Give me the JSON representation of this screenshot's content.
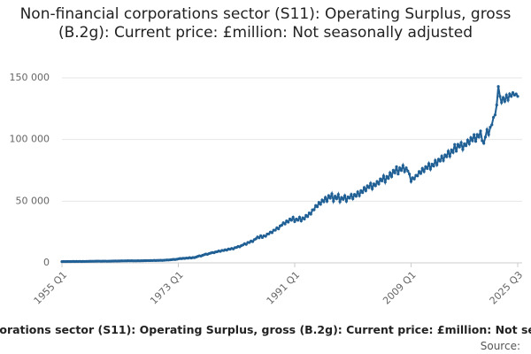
{
  "chart_data": {
    "type": "line",
    "title": "Non-financial corporations sector (S11): Operating Surplus, gross (B.2g): Current price: £million: Not seasonally adjusted",
    "source": "Source:",
    "color": "#206095",
    "grid": true,
    "ylim": [
      0,
      150000
    ],
    "yticks": [
      0,
      {
        "value": 50000,
        "label": "50 000"
      },
      {
        "value": 100000,
        "label": "100 000"
      },
      {
        "value": 150000,
        "label": "150 000"
      }
    ],
    "categories": [
      "1955 Q1",
      null,
      null,
      null,
      null,
      null,
      null,
      null,
      null,
      null,
      null,
      null,
      null,
      null,
      null,
      null,
      null,
      null,
      null,
      null,
      null,
      null,
      null,
      null,
      null,
      null,
      null,
      null,
      null,
      null,
      null,
      null,
      null,
      null,
      null,
      null,
      null,
      null,
      null,
      null,
      null,
      null,
      null,
      null,
      null,
      null,
      null,
      null,
      null,
      null,
      null,
      null,
      null,
      null,
      null,
      null,
      null,
      null,
      null,
      null,
      null,
      null,
      null,
      null,
      null,
      null,
      null,
      null,
      null,
      null,
      null,
      null,
      "1973 Q1",
      null,
      null,
      null,
      null,
      null,
      null,
      null,
      null,
      null,
      null,
      null,
      null,
      null,
      null,
      null,
      null,
      null,
      null,
      null,
      null,
      null,
      null,
      null,
      null,
      null,
      null,
      null,
      null,
      null,
      null,
      null,
      null,
      null,
      null,
      null,
      null,
      null,
      null,
      null,
      null,
      null,
      null,
      null,
      null,
      null,
      null,
      null,
      null,
      null,
      null,
      null,
      null,
      null,
      null,
      null,
      null,
      null,
      null,
      null,
      null,
      null,
      null,
      null,
      null,
      null,
      null,
      null,
      null,
      null,
      null,
      null,
      "1991 Q1",
      null,
      null,
      null,
      null,
      null,
      null,
      null,
      null,
      null,
      null,
      null,
      null,
      null,
      null,
      null,
      null,
      null,
      null,
      null,
      null,
      null,
      null,
      null,
      null,
      null,
      null,
      null,
      null,
      null,
      null,
      null,
      null,
      null,
      null,
      null,
      null,
      null,
      null,
      null,
      null,
      null,
      null,
      null,
      null,
      null,
      null,
      null,
      null,
      null,
      null,
      null,
      null,
      null,
      null,
      null,
      null,
      null,
      null,
      null,
      null,
      null,
      null,
      null,
      null,
      null,
      null,
      null,
      null,
      null,
      null,
      null,
      "2009 Q1",
      null,
      null,
      null,
      null,
      null,
      null,
      null,
      null,
      null,
      null,
      null,
      null,
      null,
      null,
      null,
      null,
      null,
      null,
      null,
      null,
      null,
      null,
      null,
      null,
      null,
      null,
      null,
      null,
      null,
      null,
      null,
      null,
      null,
      null,
      null,
      null,
      null,
      null,
      null,
      null,
      null,
      null,
      null,
      null,
      null,
      null,
      null,
      null,
      null,
      null,
      null,
      null,
      null,
      null,
      null,
      null,
      null,
      null,
      null,
      null,
      null,
      null,
      null,
      null,
      null,
      "2025 Q3"
    ],
    "values": [
      1000,
      1050,
      1020,
      1100,
      1050,
      1100,
      1080,
      1150,
      1100,
      1150,
      1120,
      1200,
      1100,
      1150,
      1130,
      1200,
      1200,
      1250,
      1230,
      1300,
      1300,
      1350,
      1320,
      1400,
      1300,
      1350,
      1330,
      1400,
      1300,
      1380,
      1350,
      1420,
      1450,
      1500,
      1480,
      1550,
      1550,
      1600,
      1580,
      1650,
      1600,
      1680,
      1650,
      1720,
      1600,
      1650,
      1620,
      1700,
      1650,
      1720,
      1700,
      1780,
      1800,
      1850,
      1830,
      1900,
      1850,
      1950,
      1900,
      2000,
      1950,
      2050,
      2000,
      2100,
      2200,
      2350,
      2300,
      2450,
      2600,
      2800,
      2700,
      2900,
      3200,
      3500,
      3400,
      3700,
      3600,
      3900,
      3800,
      4200,
      3900,
      4300,
      4200,
      4700,
      5200,
      5700,
      5500,
      6100,
      6600,
      7100,
      6900,
      7500,
      7900,
      8400,
      8200,
      8800,
      9000,
      9600,
      9300,
      10100,
      10000,
      10600,
      10300,
      11200,
      11000,
      11700,
      11300,
      12300,
      12500,
      13300,
      13000,
      14000,
      14500,
      15500,
      15000,
      16500,
      16500,
      17700,
      17200,
      18800,
      19500,
      21000,
      20300,
      22000,
      20500,
      22000,
      21500,
      23300,
      23500,
      25000,
      24500,
      26500,
      26500,
      28500,
      27500,
      30000,
      30500,
      32500,
      31500,
      34000,
      33000,
      35500,
      34500,
      37000,
      33500,
      35500,
      34500,
      37000,
      34000,
      36500,
      35500,
      38500,
      37500,
      40500,
      39500,
      43000,
      43000,
      46500,
      45500,
      49000,
      47500,
      51000,
      49500,
      53000,
      50000,
      54500,
      52500,
      56000,
      50000,
      54000,
      52000,
      55500,
      49500,
      53000,
      51500,
      54500,
      50000,
      53500,
      52500,
      55500,
      52000,
      55500,
      54000,
      57500,
      54500,
      58500,
      57000,
      61000,
      58500,
      62500,
      61000,
      64500,
      60000,
      64000,
      62500,
      66000,
      64000,
      68000,
      66500,
      70500,
      65500,
      70000,
      68500,
      73000,
      70000,
      75000,
      73000,
      78000,
      72000,
      77000,
      75000,
      79000,
      74000,
      77000,
      74500,
      72000,
      66000,
      69000,
      68000,
      71000,
      70500,
      74000,
      72500,
      76500,
      74000,
      78000,
      76500,
      80500,
      76000,
      80000,
      78500,
      83000,
      79500,
      84000,
      82500,
      86500,
      83000,
      87500,
      86000,
      90500,
      86500,
      91500,
      89500,
      96000,
      90500,
      96000,
      94000,
      97500,
      92000,
      96500,
      95000,
      99500,
      96500,
      101500,
      99000,
      104000,
      98500,
      104000,
      102000,
      107000,
      99000,
      97000,
      102000,
      108000,
      104000,
      110000,
      112000,
      118000,
      120000,
      128000,
      143000,
      135000,
      130000,
      134000,
      131000,
      136000,
      132000,
      137000,
      135000,
      138000,
      136000,
      137000,
      135000
    ]
  }
}
